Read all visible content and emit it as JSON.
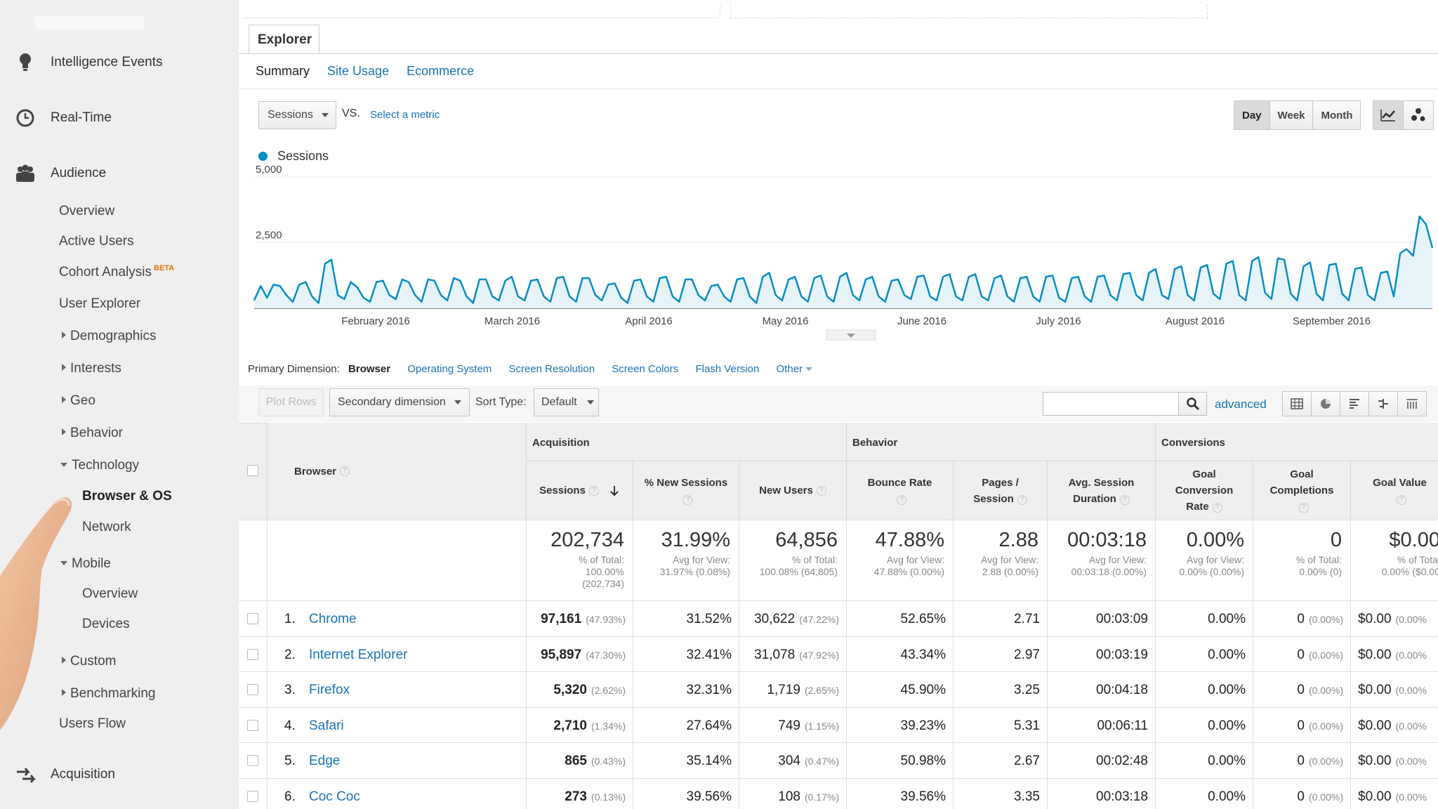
{
  "sidebar": {
    "top_items": [
      {
        "label": "Intelligence Events",
        "icon": "bulb-icon"
      },
      {
        "label": "Real-Time",
        "icon": "clock-icon"
      },
      {
        "label": "Audience",
        "icon": "people-icon"
      },
      {
        "label": "Acquisition",
        "icon": "acquisition-icon"
      }
    ],
    "audience_items": {
      "overview": "Overview",
      "active_users": "Active Users",
      "cohort": "Cohort Analysis",
      "cohort_badge": "BETA",
      "user_explorer": "User Explorer",
      "demographics": "Demographics",
      "interests": "Interests",
      "geo": "Geo",
      "behavior": "Behavior",
      "technology": "Technology",
      "browser_os": "Browser & OS",
      "network": "Network",
      "mobile": "Mobile",
      "mobile_overview": "Overview",
      "devices": "Devices",
      "custom": "Custom",
      "benchmarking": "Benchmarking",
      "users_flow": "Users Flow"
    }
  },
  "explorer": {
    "tab": "Explorer",
    "subtabs": [
      "Summary",
      "Site Usage",
      "Ecommerce"
    ]
  },
  "controls": {
    "metric": "Sessions",
    "vs": "VS.",
    "select_metric": "Select a metric",
    "periods": [
      "Day",
      "Week",
      "Month"
    ],
    "active_period": "Day"
  },
  "chart_data": {
    "type": "area",
    "legend": "Sessions",
    "ylim": [
      0,
      5000
    ],
    "y_ticks": [
      "5,000",
      "2,500"
    ],
    "x_labels": [
      "February 2016",
      "March 2016",
      "April 2016",
      "May 2016",
      "June 2016",
      "July 2016",
      "August 2016",
      "September 2016"
    ],
    "color": "#058dc7",
    "fill": "#e6f4fa",
    "values": [
      300,
      850,
      400,
      900,
      850,
      500,
      250,
      900,
      1000,
      450,
      200,
      1700,
      1850,
      500,
      350,
      1000,
      800,
      400,
      250,
      1000,
      1050,
      500,
      350,
      1100,
      1000,
      500,
      250,
      1100,
      1050,
      500,
      300,
      1150,
      1050,
      450,
      200,
      1100,
      1100,
      450,
      300,
      1050,
      1200,
      450,
      300,
      1050,
      1100,
      450,
      250,
      1150,
      1200,
      450,
      250,
      1150,
      1150,
      500,
      300,
      900,
      950,
      400,
      200,
      1050,
      1100,
      450,
      250,
      1150,
      1200,
      450,
      250,
      1100,
      1100,
      500,
      300,
      850,
      900,
      450,
      250,
      1100,
      1150,
      450,
      200,
      1200,
      1350,
      500,
      300,
      1100,
      1200,
      450,
      250,
      1150,
      1250,
      450,
      250,
      1200,
      1350,
      500,
      300,
      1100,
      1200,
      450,
      250,
      1050,
      1100,
      500,
      350,
      1200,
      1250,
      450,
      300,
      1200,
      1300,
      450,
      300,
      1200,
      1300,
      450,
      300,
      1150,
      1250,
      450,
      250,
      1150,
      1200,
      450,
      250,
      1200,
      1250,
      400,
      250,
      1150,
      1200,
      450,
      250,
      1200,
      1250,
      500,
      300,
      1300,
      1350,
      500,
      300,
      1350,
      1500,
      500,
      350,
      1500,
      1600,
      500,
      300,
      1550,
      1650,
      550,
      350,
      1700,
      1800,
      500,
      300,
      1800,
      1950,
      600,
      350,
      1900,
      1850,
      550,
      300,
      1600,
      1750,
      550,
      300,
      1650,
      1700,
      550,
      300,
      1500,
      1550,
      500,
      300,
      1350,
      1400,
      450,
      2100,
      2250,
      2000,
      3500,
      3200,
      2300
    ]
  },
  "primary_dimension": {
    "label": "Primary Dimension:",
    "current": "Browser",
    "options": [
      "Operating System",
      "Screen Resolution",
      "Screen Colors",
      "Flash Version",
      "Other"
    ]
  },
  "toolbar": {
    "plot_rows": "Plot Rows",
    "secondary": "Secondary dimension",
    "sort_label": "Sort Type:",
    "sort_value": "Default",
    "search_value": "",
    "advanced": "advanced"
  },
  "table": {
    "groups": {
      "acquisition": "Acquisition",
      "behavior": "Behavior",
      "conversions": "Conversions"
    },
    "headers": {
      "browser": "Browser",
      "sessions": "Sessions",
      "new_sessions": "% New Sessions",
      "new_users": "New Users",
      "bounce": "Bounce Rate",
      "pages_1": "Pages /",
      "pages_2": "Session",
      "avg_1": "Avg. Session",
      "avg_2": "Duration",
      "gcr_1": "Goal",
      "gcr_2": "Conversion",
      "gcr_3": "Rate",
      "gc_1": "Goal",
      "gc_2": "Completions",
      "gv": "Goal Value"
    },
    "totals": {
      "sessions": "202,734",
      "sessions_sub": [
        "% of Total:",
        "100.00%",
        "(202,734)"
      ],
      "new_sessions": "31.99%",
      "new_sessions_sub": [
        "Avg for View:",
        "31.97% (0.08%)"
      ],
      "new_users": "64,856",
      "new_users_sub": [
        "% of Total:",
        "100.08% (64,805)"
      ],
      "bounce": "47.88%",
      "bounce_sub": [
        "Avg for View:",
        "47.88% (0.00%)"
      ],
      "pages": "2.88",
      "pages_sub": [
        "Avg for View:",
        "2.88 (0.00%)"
      ],
      "avg": "00:03:18",
      "avg_sub": [
        "Avg for View:",
        "00:03:18 (0.00%)"
      ],
      "gcr": "0.00%",
      "gcr_sub": [
        "Avg for View:",
        "0.00% (0.00%)"
      ],
      "gc": "0",
      "gc_sub": [
        "% of Total:",
        "0.00% (0)"
      ],
      "gv": "$0.00",
      "gv_sub": [
        "% of Total",
        "0.00% ($0.00"
      ]
    },
    "rows": [
      {
        "idx": "1.",
        "browser": "Chrome",
        "sessions": "97,161",
        "sessions_pct": "(47.93%)",
        "new_sessions": "31.52%",
        "new_users": "30,622",
        "new_users_pct": "(47.22%)",
        "bounce": "52.65%",
        "pages": "2.71",
        "avg": "00:03:09",
        "gcr": "0.00%",
        "gc": "0",
        "gc_pct": "(0.00%)",
        "gv": "$0.00",
        "gv_pct": "(0.00%"
      },
      {
        "idx": "2.",
        "browser": "Internet Explorer",
        "sessions": "95,897",
        "sessions_pct": "(47.30%)",
        "new_sessions": "32.41%",
        "new_users": "31,078",
        "new_users_pct": "(47.92%)",
        "bounce": "43.34%",
        "pages": "2.97",
        "avg": "00:03:19",
        "gcr": "0.00%",
        "gc": "0",
        "gc_pct": "(0.00%)",
        "gv": "$0.00",
        "gv_pct": "(0.00%"
      },
      {
        "idx": "3.",
        "browser": "Firefox",
        "sessions": "5,320",
        "sessions_pct": "(2.62%)",
        "new_sessions": "32.31%",
        "new_users": "1,719",
        "new_users_pct": "(2.65%)",
        "bounce": "45.90%",
        "pages": "3.25",
        "avg": "00:04:18",
        "gcr": "0.00%",
        "gc": "0",
        "gc_pct": "(0.00%)",
        "gv": "$0.00",
        "gv_pct": "(0.00%"
      },
      {
        "idx": "4.",
        "browser": "Safari",
        "sessions": "2,710",
        "sessions_pct": "(1.34%)",
        "new_sessions": "27.64%",
        "new_users": "749",
        "new_users_pct": "(1.15%)",
        "bounce": "39.23%",
        "pages": "5.31",
        "avg": "00:06:11",
        "gcr": "0.00%",
        "gc": "0",
        "gc_pct": "(0.00%)",
        "gv": "$0.00",
        "gv_pct": "(0.00%"
      },
      {
        "idx": "5.",
        "browser": "Edge",
        "sessions": "865",
        "sessions_pct": "(0.43%)",
        "new_sessions": "35.14%",
        "new_users": "304",
        "new_users_pct": "(0.47%)",
        "bounce": "50.98%",
        "pages": "2.67",
        "avg": "00:02:48",
        "gcr": "0.00%",
        "gc": "0",
        "gc_pct": "(0.00%)",
        "gv": "$0.00",
        "gv_pct": "(0.00%"
      },
      {
        "idx": "6.",
        "browser": "Coc Coc",
        "sessions": "273",
        "sessions_pct": "(0.13%)",
        "new_sessions": "39.56%",
        "new_users": "108",
        "new_users_pct": "(0.17%)",
        "bounce": "39.56%",
        "pages": "3.35",
        "avg": "00:03:18",
        "gcr": "0.00%",
        "gc": "0",
        "gc_pct": "(0.00%)",
        "gv": "$0.00",
        "gv_pct": "(0.00%"
      }
    ]
  }
}
